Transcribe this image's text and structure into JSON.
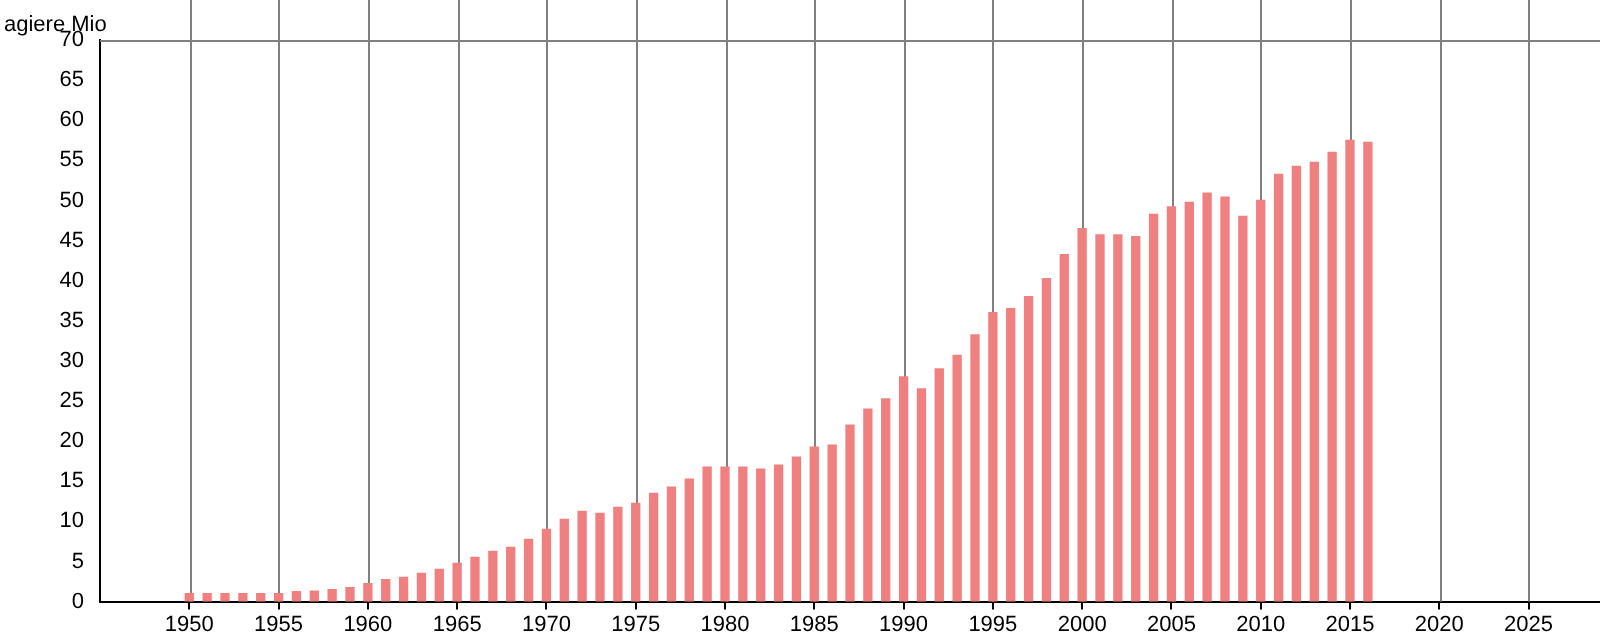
{
  "chart_data": {
    "type": "bar",
    "ylabel": "agiere Mio",
    "x": [
      1950,
      1951,
      1952,
      1953,
      1954,
      1955,
      1956,
      1957,
      1958,
      1959,
      1960,
      1961,
      1962,
      1963,
      1964,
      1965,
      1966,
      1967,
      1968,
      1969,
      1970,
      1971,
      1972,
      1973,
      1974,
      1975,
      1976,
      1977,
      1978,
      1979,
      1980,
      1981,
      1982,
      1983,
      1984,
      1985,
      1986,
      1987,
      1988,
      1989,
      1990,
      1991,
      1992,
      1993,
      1994,
      1995,
      1996,
      1997,
      1998,
      1999,
      2000,
      2001,
      2002,
      2003,
      2004,
      2005,
      2006,
      2007,
      2008,
      2009,
      2010,
      2011,
      2012,
      2013,
      2014,
      2015,
      2016
    ],
    "values": [
      1.0,
      1.0,
      1.0,
      1.0,
      1.0,
      1.0,
      1.25,
      1.3,
      1.5,
      1.75,
      2.25,
      2.75,
      3.0,
      3.5,
      4.0,
      4.75,
      5.5,
      6.25,
      6.75,
      7.75,
      9.0,
      10.25,
      11.25,
      11.0,
      11.75,
      12.25,
      13.5,
      14.25,
      15.25,
      16.75,
      16.75,
      16.75,
      16.5,
      17.0,
      18.0,
      19.25,
      19.5,
      22.0,
      24.0,
      25.25,
      28.0,
      26.5,
      29.0,
      30.7,
      33.25,
      36.0,
      36.5,
      38.0,
      40.25,
      43.25,
      46.5,
      45.7,
      45.7,
      45.5,
      48.25,
      49.2,
      49.75,
      50.9,
      50.4,
      48.0,
      50.0,
      53.25,
      54.25,
      54.75,
      56.0,
      57.5,
      57.25
    ],
    "color": "#f08080",
    "xlim": [
      1945,
      2029
    ],
    "xticks": [
      1950,
      1955,
      1960,
      1965,
      1970,
      1975,
      1980,
      1985,
      1990,
      1995,
      2000,
      2005,
      2010,
      2015,
      2020,
      2025
    ],
    "ylim": [
      0,
      70
    ],
    "yticks": [
      0,
      5,
      10,
      15,
      20,
      25,
      30,
      35,
      40,
      45,
      50,
      55,
      60,
      65,
      70
    ],
    "grid": "x",
    "legend": false
  }
}
